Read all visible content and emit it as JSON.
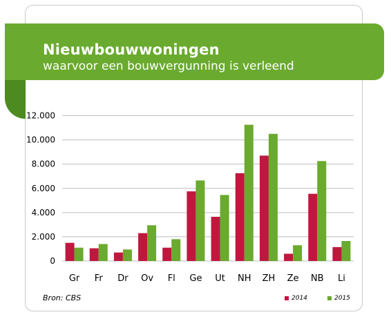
{
  "header": {
    "title": "Nieuwbouwwoningen",
    "subtitle": "waarvoor een bouwvergunning is verleend"
  },
  "source": "Bron: CBS",
  "colors": {
    "s2014": "#c0173f",
    "s2015": "#6aaa2e",
    "banner": "#6aaa2e",
    "grid": "#bdbdbd"
  },
  "chart_data": {
    "type": "bar",
    "title": "Nieuwbouwwoningen",
    "subtitle": "waarvoor een bouwvergunning is verleend",
    "xlabel": "",
    "ylabel": "",
    "ylim": [
      0,
      12000
    ],
    "yticks": [
      0,
      2000,
      4000,
      6000,
      8000,
      10000,
      12000
    ],
    "ytick_labels": [
      "0",
      "2.000",
      "4.000",
      "6.000",
      "8.000",
      "10.000",
      "12.000"
    ],
    "grid": true,
    "legend": "bottom-right",
    "categories": [
      "Gr",
      "Fr",
      "Dr",
      "Ov",
      "Fl",
      "Ge",
      "Ut",
      "NH",
      "ZH",
      "Ze",
      "NB",
      "Li"
    ],
    "series": [
      {
        "name": "2014",
        "color": "#c0173f",
        "values": [
          1500,
          1050,
          700,
          2300,
          1100,
          5750,
          3650,
          7250,
          8700,
          600,
          5550,
          1150
        ]
      },
      {
        "name": "2015",
        "color": "#6aaa2e",
        "values": [
          1100,
          1400,
          950,
          2950,
          1800,
          6650,
          5450,
          11250,
          10500,
          1300,
          8250,
          1650
        ]
      }
    ]
  }
}
